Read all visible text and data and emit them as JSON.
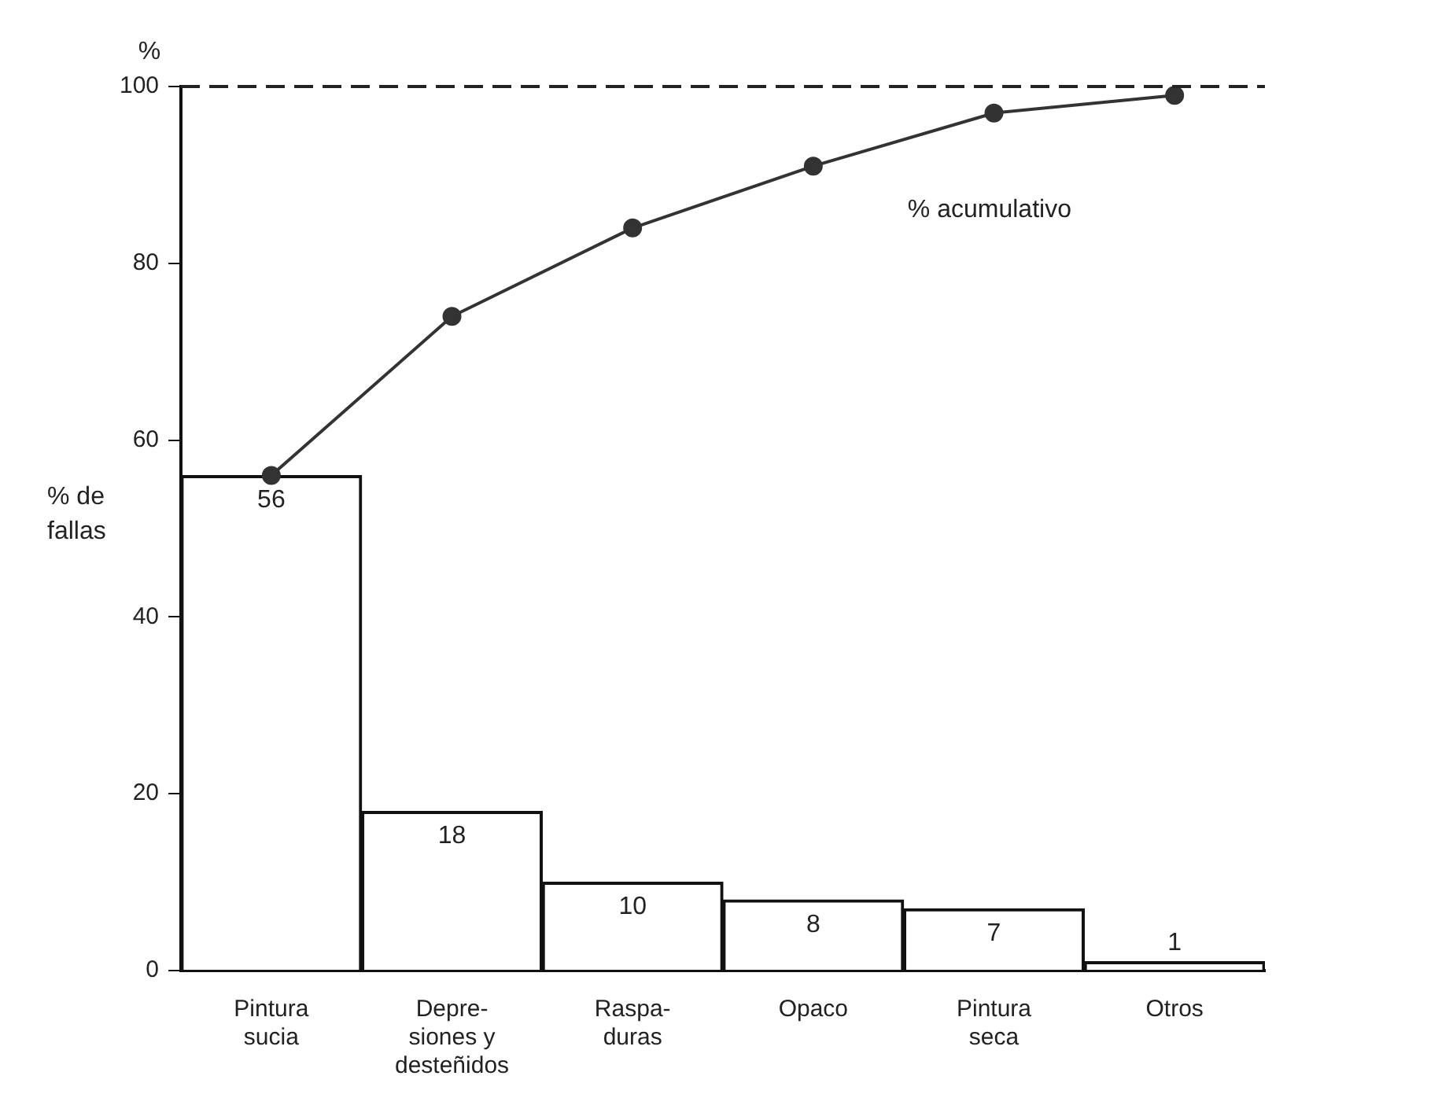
{
  "chart_data": {
    "type": "bar",
    "ylabel": "% de fallas",
    "categories": [
      "Pintura\nsucia",
      "Depre-\nsiones y\ndesteñidos",
      "Raspa-\nduras",
      "Opaco",
      "Pintura\nseca",
      "Otros"
    ],
    "series": [
      {
        "color": "#ffffff",
        "values": [
          56,
          18,
          10,
          8,
          7,
          1
        ],
        "value_labels": [
          "56",
          "18",
          "10",
          "8",
          "7",
          "1"
        ]
      },
      {
        "type": "line",
        "color": "#333333",
        "values": [
          56,
          74,
          84,
          91,
          97,
          99
        ],
        "marker": "circle",
        "line_style": "solid"
      }
    ],
    "ylim": [
      0,
      100
    ],
    "yticks": [
      0,
      20,
      40,
      60,
      80,
      100
    ],
    "grid": false,
    "legend": false,
    "ref_lines": [
      {
        "axis": "y",
        "value": 100,
        "line_style": "dashed",
        "color": "#222222"
      }
    ],
    "annotations": [
      "%",
      "% acumulativo"
    ]
  }
}
